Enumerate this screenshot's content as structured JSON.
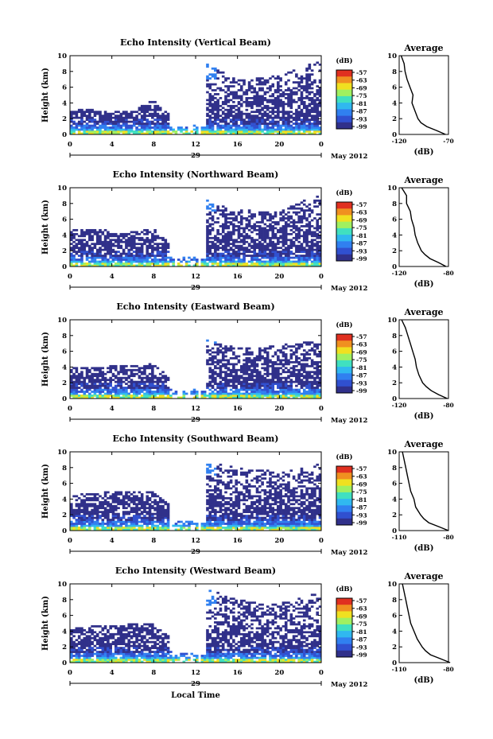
{
  "chart_data": [
    {
      "type": "heatmap",
      "title": "Echo Intensity (Vertical Beam)",
      "ylabel": "Height (km)",
      "ylim": [
        0,
        10
      ],
      "yticks": [
        "0",
        "2",
        "4",
        "6",
        "8",
        "10"
      ],
      "xlim": [
        0,
        24
      ],
      "xticks": [
        "0",
        "4",
        "8",
        "12",
        "16",
        "20",
        "0"
      ],
      "date_label": "29",
      "month_label": "May 2012",
      "colorbar": {
        "unit": "(dB)",
        "ticks": [
          "-57",
          "-63",
          "-69",
          "-75",
          "-81",
          "-87",
          "-93",
          "-99"
        ]
      },
      "gap_hours": [
        [
          12.0,
          13.0
        ]
      ],
      "top_profile_km": [
        [
          0,
          3.2
        ],
        [
          6,
          3.0
        ],
        [
          8,
          4.5
        ],
        [
          9.5,
          2.5
        ],
        [
          11,
          2.2
        ],
        [
          12,
          3.0
        ],
        [
          13,
          9.0
        ],
        [
          16,
          7.0
        ],
        [
          20,
          7.5
        ],
        [
          24,
          9.5
        ]
      ],
      "average_profile": {
        "title": "Average",
        "xlabel": "(dB)",
        "xticks": [
          "-120",
          "-70"
        ],
        "xlim": [
          -120,
          -70
        ],
        "height_km": [
          0,
          0.5,
          1,
          1.5,
          2,
          3,
          4,
          5,
          6,
          7,
          8,
          9,
          10
        ],
        "values_db": [
          -73,
          -82,
          -92,
          -98,
          -101,
          -104,
          -107,
          -106,
          -109,
          -112,
          -114,
          -115,
          -118
        ]
      }
    },
    {
      "type": "heatmap",
      "title": "Echo Intensity (Northward Beam)",
      "ylabel": "Height (km)",
      "ylim": [
        0,
        10
      ],
      "yticks": [
        "0",
        "2",
        "4",
        "6",
        "8",
        "10"
      ],
      "xlim": [
        0,
        24
      ],
      "xticks": [
        "0",
        "4",
        "8",
        "12",
        "16",
        "20",
        "0"
      ],
      "date_label": "29",
      "month_label": "May 2012",
      "colorbar": {
        "unit": "(dB)",
        "ticks": [
          "-57",
          "-63",
          "-69",
          "-75",
          "-81",
          "-87",
          "-93",
          "-99"
        ]
      },
      "gap_hours": [
        [
          12.0,
          13.0
        ]
      ],
      "top_profile_km": [
        [
          0,
          4.8
        ],
        [
          6,
          4.5
        ],
        [
          8,
          4.8
        ],
        [
          9.5,
          3.0
        ],
        [
          11,
          2.8
        ],
        [
          12,
          3.0
        ],
        [
          13,
          8.5
        ],
        [
          16,
          7.2
        ],
        [
          20,
          7.0
        ],
        [
          24,
          9.5
        ]
      ],
      "average_profile": {
        "title": "Average",
        "xlabel": "(dB)",
        "xticks": [
          "-120",
          "-80"
        ],
        "xlim": [
          -120,
          -80
        ],
        "height_km": [
          0,
          0.5,
          1,
          1.5,
          2,
          3,
          4,
          5,
          6,
          7,
          8,
          9,
          10
        ],
        "values_db": [
          -82,
          -88,
          -95,
          -99,
          -102,
          -105,
          -107,
          -108,
          -110,
          -111,
          -114,
          -114,
          -118
        ]
      }
    },
    {
      "type": "heatmap",
      "title": "Echo Intensity (Eastward Beam)",
      "ylabel": "Height (km)",
      "ylim": [
        0,
        10
      ],
      "yticks": [
        "0",
        "2",
        "4",
        "6",
        "8",
        "10"
      ],
      "xlim": [
        0,
        24
      ],
      "xticks": [
        "0",
        "4",
        "8",
        "12",
        "16",
        "20",
        "0"
      ],
      "date_label": "29",
      "month_label": "May 2012",
      "colorbar": {
        "unit": "(dB)",
        "ticks": [
          "-57",
          "-63",
          "-69",
          "-75",
          "-81",
          "-87",
          "-93",
          "-99"
        ]
      },
      "gap_hours": [
        [
          12.0,
          13.0
        ]
      ],
      "top_profile_km": [
        [
          0,
          4.0
        ],
        [
          6,
          4.2
        ],
        [
          8,
          4.5
        ],
        [
          9.5,
          3.0
        ],
        [
          11,
          2.5
        ],
        [
          12,
          3.0
        ],
        [
          13,
          7.5
        ],
        [
          16,
          6.5
        ],
        [
          20,
          6.8
        ],
        [
          24,
          7.5
        ]
      ],
      "average_profile": {
        "title": "Average",
        "xlabel": "(dB)",
        "xticks": [
          "-120",
          "-80"
        ],
        "xlim": [
          -120,
          -80
        ],
        "height_km": [
          0,
          0.5,
          1,
          1.5,
          2,
          3,
          4,
          5,
          6,
          7,
          8,
          9,
          10
        ],
        "values_db": [
          -81,
          -88,
          -94,
          -98,
          -101,
          -104,
          -106,
          -107,
          -109,
          -111,
          -113,
          -115,
          -118
        ]
      }
    },
    {
      "type": "heatmap",
      "title": "Echo Intensity (Southward Beam)",
      "ylabel": "Height (km)",
      "ylim": [
        0,
        10
      ],
      "yticks": [
        "0",
        "2",
        "4",
        "6",
        "8",
        "10"
      ],
      "xlim": [
        0,
        24
      ],
      "xticks": [
        "0",
        "4",
        "8",
        "12",
        "16",
        "20",
        "0"
      ],
      "date_label": "29",
      "month_label": "May 2012",
      "colorbar": {
        "unit": "(dB)",
        "ticks": [
          "-57",
          "-63",
          "-69",
          "-75",
          "-81",
          "-87",
          "-93",
          "-99"
        ]
      },
      "gap_hours": [
        [
          12.0,
          13.0
        ]
      ],
      "top_profile_km": [
        [
          0,
          4.5
        ],
        [
          4,
          5.0
        ],
        [
          8,
          5.0
        ],
        [
          9.5,
          3.5
        ],
        [
          11,
          3.0
        ],
        [
          12,
          3.5
        ],
        [
          13,
          9.0
        ],
        [
          16,
          8.0
        ],
        [
          20,
          7.5
        ],
        [
          24,
          8.5
        ]
      ],
      "average_profile": {
        "title": "Average",
        "xlabel": "(dB)",
        "xticks": [
          "-110",
          "-80"
        ],
        "xlim": [
          -110,
          -80
        ],
        "height_km": [
          0,
          0.5,
          1,
          1.5,
          2,
          3,
          4,
          5,
          6,
          7,
          8,
          9,
          10
        ],
        "values_db": [
          -80,
          -86,
          -92,
          -95,
          -97,
          -100,
          -101,
          -103,
          -104,
          -105,
          -106,
          -107,
          -108
        ]
      }
    },
    {
      "type": "heatmap",
      "title": "Echo Intensity (Westward Beam)",
      "ylabel": "Height (km)",
      "ylim": [
        0,
        10
      ],
      "yticks": [
        "0",
        "2",
        "4",
        "6",
        "8",
        "10"
      ],
      "xlim": [
        0,
        24
      ],
      "xticks": [
        "0",
        "4",
        "8",
        "12",
        "16",
        "20",
        "0"
      ],
      "date_label": "29",
      "month_label": "May 2012",
      "xlabel": "Local Time",
      "colorbar": {
        "unit": "(dB)",
        "ticks": [
          "-57",
          "-63",
          "-69",
          "-75",
          "-81",
          "-87",
          "-93",
          "-99"
        ]
      },
      "gap_hours": [
        [
          12.0,
          13.0
        ]
      ],
      "top_profile_km": [
        [
          0,
          4.5
        ],
        [
          4,
          4.8
        ],
        [
          8,
          5.0
        ],
        [
          9.5,
          3.5
        ],
        [
          11,
          3.0
        ],
        [
          12,
          3.5
        ],
        [
          13,
          9.5
        ],
        [
          16,
          8.0
        ],
        [
          20,
          7.5
        ],
        [
          24,
          9.0
        ]
      ],
      "average_profile": {
        "title": "Average",
        "xlabel": "(dB)",
        "xticks": [
          "-110",
          "-80"
        ],
        "xlim": [
          -110,
          -80
        ],
        "height_km": [
          0,
          0.5,
          1,
          1.5,
          2,
          3,
          4,
          5,
          6,
          7,
          8,
          9,
          10
        ],
        "values_db": [
          -79,
          -85,
          -91,
          -94,
          -96,
          -99,
          -101,
          -103,
          -104,
          -105,
          -106,
          -107,
          -108
        ]
      }
    }
  ],
  "colors": {
    "background": "#ffffff",
    "axis": "#000000",
    "colorscale": [
      "#30308a",
      "#3050d0",
      "#3080f0",
      "#30b8f0",
      "#40e0c0",
      "#a0f060",
      "#f0e020",
      "#f09020",
      "#e03020"
    ]
  }
}
